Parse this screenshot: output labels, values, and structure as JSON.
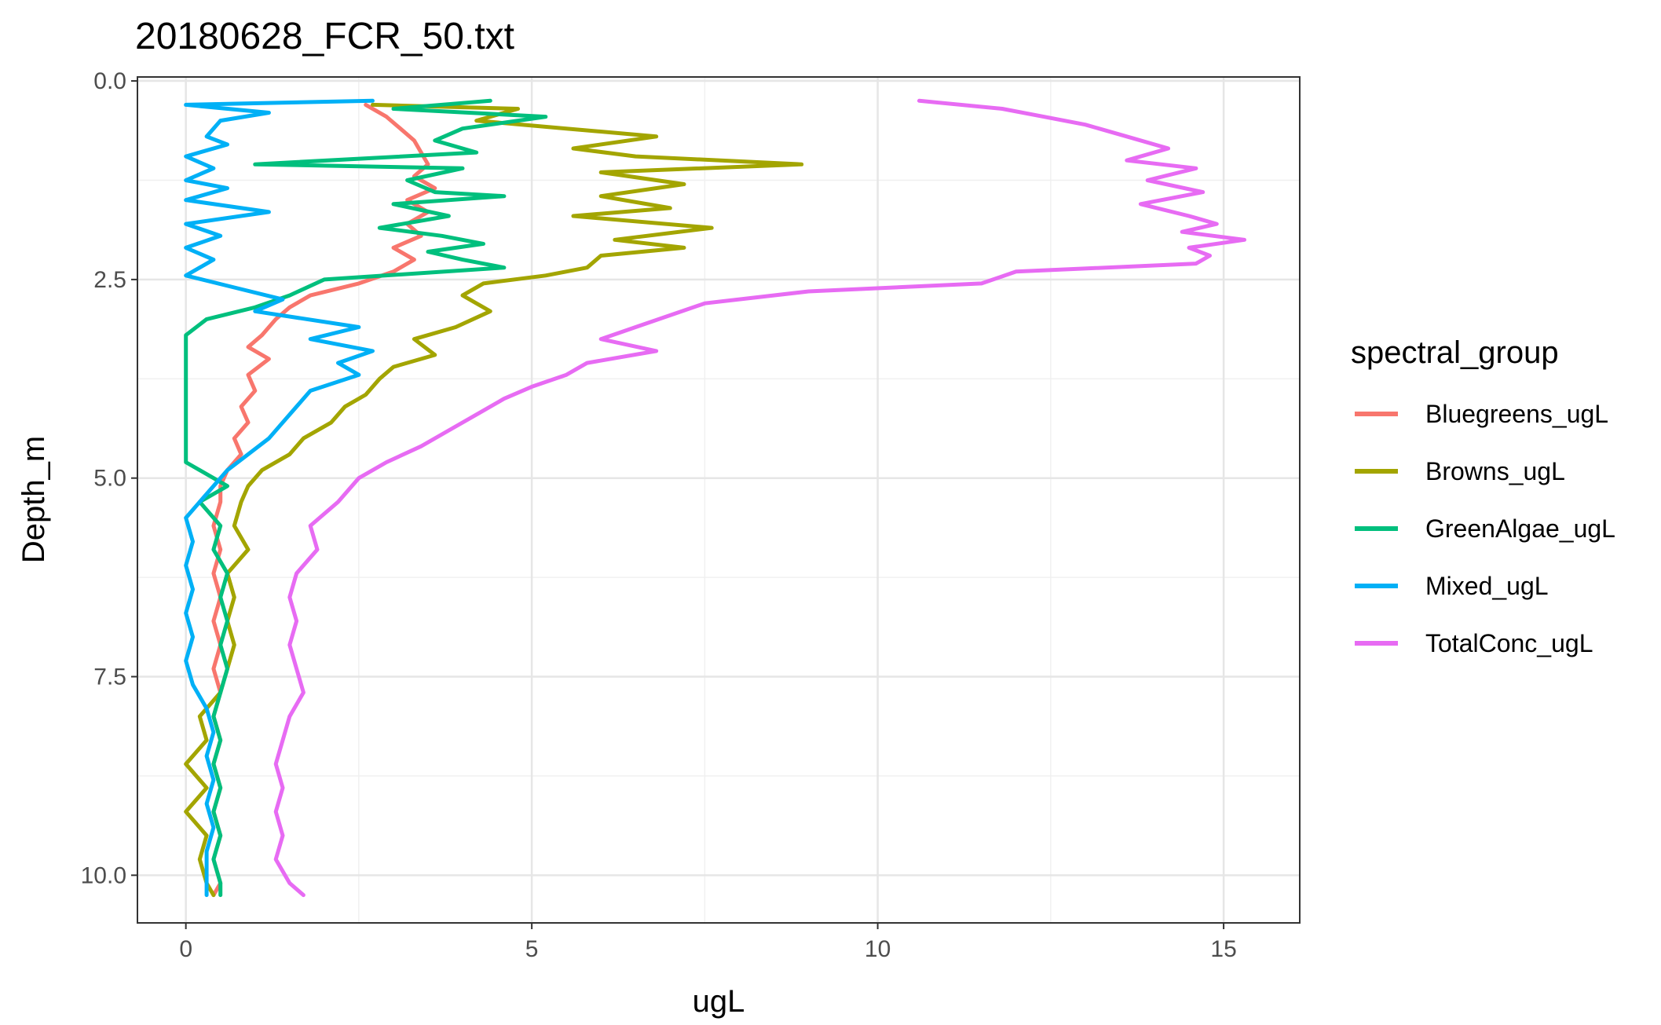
{
  "chart_data": {
    "type": "line",
    "title": "20180628_FCR_50.txt",
    "xlabel": "ugL",
    "ylabel": "Depth_m",
    "xlim": [
      -0.7,
      16.1
    ],
    "ylim": [
      10.6,
      -0.05
    ],
    "y_reversed": true,
    "x_ticks": [
      0,
      5,
      10,
      15
    ],
    "x_tick_labels": [
      "0",
      "5",
      "10",
      "15"
    ],
    "y_ticks": [
      0,
      2.5,
      5,
      7.5,
      10
    ],
    "y_tick_labels": [
      "0.0",
      "2.5",
      "5.0",
      "7.5",
      "10.0"
    ],
    "grid": true,
    "legend_placement": "right",
    "legend_title": "spectral_group",
    "series": [
      {
        "name": "Bluegreens_ugL",
        "color": "#F8766D",
        "points": [
          [
            2.6,
            0.3
          ],
          [
            2.9,
            0.45
          ],
          [
            3.1,
            0.6
          ],
          [
            3.3,
            0.75
          ],
          [
            3.4,
            0.9
          ],
          [
            3.5,
            1.05
          ],
          [
            3.3,
            1.2
          ],
          [
            3.6,
            1.35
          ],
          [
            3.2,
            1.5
          ],
          [
            3.5,
            1.65
          ],
          [
            3.2,
            1.8
          ],
          [
            3.4,
            1.95
          ],
          [
            3.0,
            2.1
          ],
          [
            3.3,
            2.25
          ],
          [
            3.0,
            2.4
          ],
          [
            2.5,
            2.55
          ],
          [
            1.8,
            2.7
          ],
          [
            1.5,
            2.85
          ],
          [
            1.3,
            3.0
          ],
          [
            1.1,
            3.2
          ],
          [
            0.9,
            3.35
          ],
          [
            1.2,
            3.5
          ],
          [
            0.9,
            3.7
          ],
          [
            1.0,
            3.9
          ],
          [
            0.8,
            4.1
          ],
          [
            0.9,
            4.3
          ],
          [
            0.7,
            4.5
          ],
          [
            0.8,
            4.7
          ],
          [
            0.6,
            4.9
          ],
          [
            0.5,
            5.1
          ],
          [
            0.5,
            5.3
          ],
          [
            0.4,
            5.6
          ],
          [
            0.5,
            5.9
          ],
          [
            0.4,
            6.2
          ],
          [
            0.5,
            6.5
          ],
          [
            0.4,
            6.8
          ],
          [
            0.5,
            7.1
          ],
          [
            0.4,
            7.4
          ],
          [
            0.5,
            7.7
          ],
          [
            0.4,
            8.0
          ],
          [
            0.5,
            8.3
          ],
          [
            0.4,
            8.6
          ],
          [
            0.5,
            8.9
          ],
          [
            0.4,
            9.2
          ],
          [
            0.5,
            9.5
          ],
          [
            0.4,
            9.8
          ],
          [
            0.5,
            10.1
          ],
          [
            0.4,
            10.25
          ]
        ]
      },
      {
        "name": "Browns_ugL",
        "color": "#A3A500",
        "points": [
          [
            2.7,
            0.3
          ],
          [
            4.8,
            0.35
          ],
          [
            4.2,
            0.5
          ],
          [
            5.5,
            0.6
          ],
          [
            6.8,
            0.7
          ],
          [
            5.6,
            0.85
          ],
          [
            6.5,
            0.95
          ],
          [
            8.9,
            1.05
          ],
          [
            6.0,
            1.15
          ],
          [
            7.2,
            1.3
          ],
          [
            6.0,
            1.45
          ],
          [
            7.0,
            1.6
          ],
          [
            5.6,
            1.7
          ],
          [
            7.6,
            1.85
          ],
          [
            6.2,
            2.0
          ],
          [
            7.2,
            2.1
          ],
          [
            6.0,
            2.2
          ],
          [
            5.8,
            2.35
          ],
          [
            5.2,
            2.45
          ],
          [
            4.3,
            2.55
          ],
          [
            4.0,
            2.7
          ],
          [
            4.4,
            2.9
          ],
          [
            3.9,
            3.1
          ],
          [
            3.3,
            3.25
          ],
          [
            3.6,
            3.45
          ],
          [
            3.0,
            3.6
          ],
          [
            2.8,
            3.75
          ],
          [
            2.6,
            3.95
          ],
          [
            2.3,
            4.1
          ],
          [
            2.1,
            4.3
          ],
          [
            1.7,
            4.5
          ],
          [
            1.5,
            4.7
          ],
          [
            1.1,
            4.9
          ],
          [
            0.9,
            5.1
          ],
          [
            0.8,
            5.3
          ],
          [
            0.7,
            5.6
          ],
          [
            0.9,
            5.9
          ],
          [
            0.6,
            6.2
          ],
          [
            0.7,
            6.5
          ],
          [
            0.6,
            6.8
          ],
          [
            0.7,
            7.1
          ],
          [
            0.6,
            7.4
          ],
          [
            0.5,
            7.7
          ],
          [
            0.2,
            8.0
          ],
          [
            0.3,
            8.3
          ],
          [
            0.0,
            8.6
          ],
          [
            0.3,
            8.9
          ],
          [
            0.0,
            9.2
          ],
          [
            0.3,
            9.5
          ],
          [
            0.2,
            9.8
          ],
          [
            0.3,
            10.1
          ],
          [
            0.4,
            10.25
          ]
        ]
      },
      {
        "name": "GreenAlgae_ugL",
        "color": "#00BF7D",
        "points": [
          [
            4.4,
            0.25
          ],
          [
            3.0,
            0.35
          ],
          [
            5.2,
            0.45
          ],
          [
            4.0,
            0.6
          ],
          [
            3.6,
            0.75
          ],
          [
            4.2,
            0.9
          ],
          [
            1.0,
            1.05
          ],
          [
            4.0,
            1.1
          ],
          [
            3.2,
            1.25
          ],
          [
            3.6,
            1.4
          ],
          [
            4.6,
            1.45
          ],
          [
            3.0,
            1.55
          ],
          [
            3.8,
            1.7
          ],
          [
            2.8,
            1.85
          ],
          [
            3.7,
            1.95
          ],
          [
            4.3,
            2.05
          ],
          [
            3.5,
            2.15
          ],
          [
            4.0,
            2.25
          ],
          [
            4.6,
            2.35
          ],
          [
            2.0,
            2.5
          ],
          [
            1.5,
            2.7
          ],
          [
            1.0,
            2.85
          ],
          [
            0.3,
            3.0
          ],
          [
            0.0,
            3.2
          ],
          [
            0.0,
            3.6
          ],
          [
            0.0,
            4.0
          ],
          [
            0.0,
            4.4
          ],
          [
            0.0,
            4.8
          ],
          [
            0.6,
            5.1
          ],
          [
            0.2,
            5.3
          ],
          [
            0.5,
            5.6
          ],
          [
            0.4,
            5.9
          ],
          [
            0.6,
            6.2
          ],
          [
            0.5,
            6.5
          ],
          [
            0.6,
            6.8
          ],
          [
            0.5,
            7.1
          ],
          [
            0.6,
            7.4
          ],
          [
            0.5,
            7.7
          ],
          [
            0.4,
            8.0
          ],
          [
            0.5,
            8.3
          ],
          [
            0.4,
            8.6
          ],
          [
            0.5,
            8.9
          ],
          [
            0.4,
            9.2
          ],
          [
            0.5,
            9.5
          ],
          [
            0.4,
            9.8
          ],
          [
            0.5,
            10.1
          ],
          [
            0.5,
            10.25
          ]
        ]
      },
      {
        "name": "Mixed_ugL",
        "color": "#00B0F6",
        "points": [
          [
            2.7,
            0.25
          ],
          [
            0.0,
            0.3
          ],
          [
            1.2,
            0.4
          ],
          [
            0.5,
            0.5
          ],
          [
            0.3,
            0.7
          ],
          [
            0.6,
            0.8
          ],
          [
            0.0,
            0.95
          ],
          [
            0.4,
            1.1
          ],
          [
            0.0,
            1.25
          ],
          [
            0.6,
            1.35
          ],
          [
            0.0,
            1.5
          ],
          [
            1.2,
            1.65
          ],
          [
            0.0,
            1.8
          ],
          [
            0.5,
            1.95
          ],
          [
            0.0,
            2.1
          ],
          [
            0.4,
            2.25
          ],
          [
            0.0,
            2.45
          ],
          [
            0.7,
            2.6
          ],
          [
            1.4,
            2.75
          ],
          [
            1.0,
            2.9
          ],
          [
            2.5,
            3.1
          ],
          [
            1.8,
            3.25
          ],
          [
            2.7,
            3.4
          ],
          [
            2.2,
            3.55
          ],
          [
            2.5,
            3.7
          ],
          [
            1.8,
            3.9
          ],
          [
            1.6,
            4.1
          ],
          [
            1.4,
            4.3
          ],
          [
            1.2,
            4.5
          ],
          [
            0.9,
            4.7
          ],
          [
            0.6,
            4.9
          ],
          [
            0.4,
            5.1
          ],
          [
            0.2,
            5.3
          ],
          [
            0.0,
            5.5
          ],
          [
            0.1,
            5.8
          ],
          [
            0.0,
            6.1
          ],
          [
            0.1,
            6.4
          ],
          [
            0.0,
            6.7
          ],
          [
            0.1,
            7.0
          ],
          [
            0.0,
            7.3
          ],
          [
            0.1,
            7.6
          ],
          [
            0.3,
            7.9
          ],
          [
            0.4,
            8.2
          ],
          [
            0.3,
            8.5
          ],
          [
            0.4,
            8.8
          ],
          [
            0.3,
            9.1
          ],
          [
            0.4,
            9.4
          ],
          [
            0.3,
            9.7
          ],
          [
            0.3,
            10.0
          ],
          [
            0.3,
            10.25
          ]
        ]
      },
      {
        "name": "TotalConc_ugL",
        "color": "#E76BF3",
        "points": [
          [
            10.6,
            0.25
          ],
          [
            11.8,
            0.35
          ],
          [
            12.4,
            0.45
          ],
          [
            13.0,
            0.55
          ],
          [
            13.6,
            0.7
          ],
          [
            14.2,
            0.85
          ],
          [
            13.6,
            1.0
          ],
          [
            14.6,
            1.1
          ],
          [
            13.9,
            1.25
          ],
          [
            14.7,
            1.4
          ],
          [
            13.8,
            1.55
          ],
          [
            14.5,
            1.7
          ],
          [
            14.9,
            1.8
          ],
          [
            14.4,
            1.9
          ],
          [
            15.3,
            2.0
          ],
          [
            14.5,
            2.1
          ],
          [
            14.8,
            2.2
          ],
          [
            14.6,
            2.3
          ],
          [
            12.0,
            2.4
          ],
          [
            11.5,
            2.55
          ],
          [
            9.0,
            2.65
          ],
          [
            7.5,
            2.8
          ],
          [
            7.0,
            2.95
          ],
          [
            6.5,
            3.1
          ],
          [
            6.0,
            3.25
          ],
          [
            6.8,
            3.4
          ],
          [
            5.8,
            3.55
          ],
          [
            5.5,
            3.7
          ],
          [
            5.0,
            3.85
          ],
          [
            4.6,
            4.0
          ],
          [
            4.2,
            4.2
          ],
          [
            3.8,
            4.4
          ],
          [
            3.4,
            4.6
          ],
          [
            2.9,
            4.8
          ],
          [
            2.5,
            5.0
          ],
          [
            2.2,
            5.3
          ],
          [
            1.8,
            5.6
          ],
          [
            1.9,
            5.9
          ],
          [
            1.6,
            6.2
          ],
          [
            1.5,
            6.5
          ],
          [
            1.6,
            6.8
          ],
          [
            1.5,
            7.1
          ],
          [
            1.6,
            7.4
          ],
          [
            1.7,
            7.7
          ],
          [
            1.5,
            8.0
          ],
          [
            1.4,
            8.3
          ],
          [
            1.3,
            8.6
          ],
          [
            1.4,
            8.9
          ],
          [
            1.3,
            9.2
          ],
          [
            1.4,
            9.5
          ],
          [
            1.3,
            9.8
          ],
          [
            1.5,
            10.1
          ],
          [
            1.7,
            10.25
          ]
        ]
      }
    ]
  }
}
